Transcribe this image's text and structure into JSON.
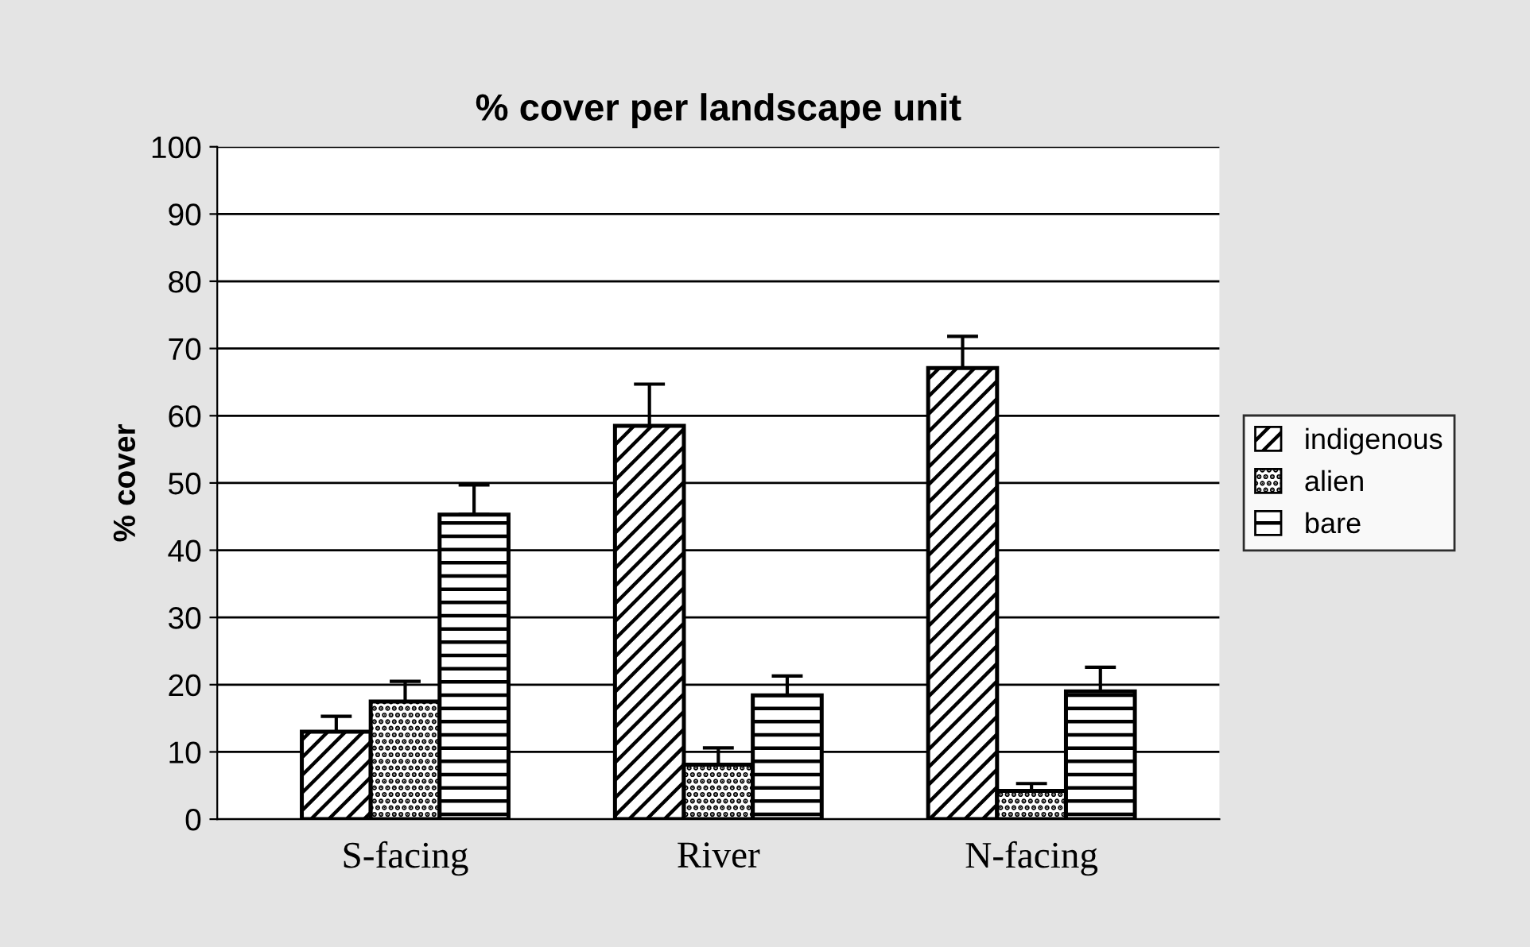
{
  "chart_data": {
    "type": "bar",
    "title": "% cover per landscape unit",
    "ylabel": "% cover",
    "categories": [
      "S-facing",
      "River",
      "N-facing"
    ],
    "series": [
      {
        "name": "indigenous",
        "color": "#000000",
        "values": [
          13,
          58.5,
          67.1
        ],
        "errors": [
          [
            13,
            15.3
          ],
          [
            58.5,
            64.7
          ],
          [
            67.1,
            71.8
          ]
        ]
      },
      {
        "name": "alien",
        "color": "#000000",
        "values": [
          17.5,
          8.1,
          4.2
        ],
        "errors": [
          [
            17.5,
            20.5
          ],
          [
            8.1,
            10.6
          ],
          [
            4.2,
            5.3
          ]
        ]
      },
      {
        "name": "bare",
        "color": "#000000",
        "values": [
          45.3,
          18.4,
          19
        ],
        "errors": [
          [
            45.3,
            49.7
          ],
          [
            18.4,
            21.3
          ],
          [
            19,
            22.6
          ]
        ]
      }
    ],
    "ylim": [
      0,
      100
    ],
    "yticks": [
      0,
      10,
      20,
      30,
      40,
      50,
      60,
      70,
      80,
      90,
      100
    ],
    "grid": "y",
    "legend": "right"
  }
}
